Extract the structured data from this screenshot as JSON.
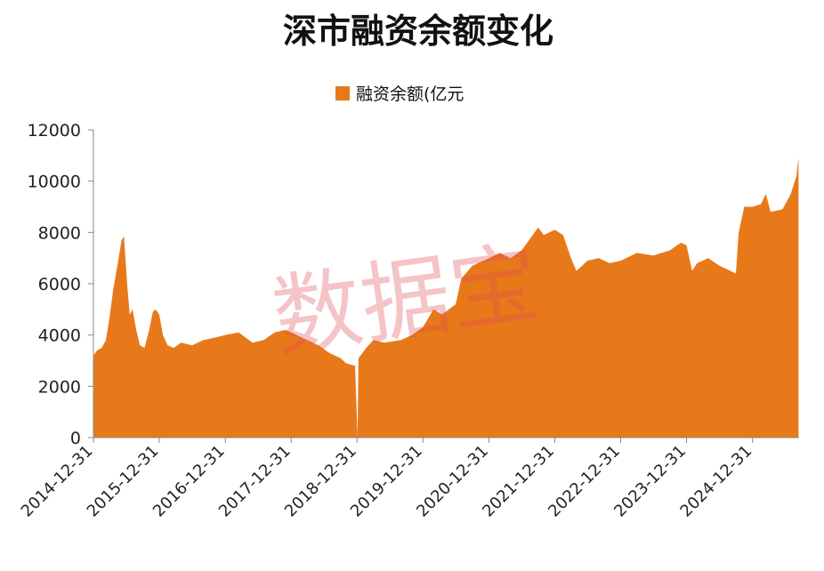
{
  "chart_data": {
    "type": "area",
    "title": "深市融资余额变化",
    "legend": {
      "label": "融资余额(亿元",
      "position": "top"
    },
    "colors": {
      "fill": "#E8791A",
      "axis": "#888888",
      "title": "#111111"
    },
    "watermark": "数据宝",
    "ylim": [
      0,
      12000
    ],
    "yticks": [
      "0",
      "2000",
      "4000",
      "6000",
      "8000",
      "10000",
      "12000"
    ],
    "xlim": [
      "2014-12-31",
      "2025-09-15"
    ],
    "xticks": [
      "2014-12-31",
      "2015-12-31",
      "2016-12-31",
      "2017-12-31",
      "2018-12-31",
      "2019-12-31",
      "2020-12-31",
      "2021-12-31",
      "2022-12-31",
      "2023-12-31",
      "2024-12-31"
    ],
    "grid": false,
    "series": [
      {
        "name": "融资余额(亿元",
        "points": [
          [
            "2014-12-31",
            3200
          ],
          [
            "2015-01-20",
            3400
          ],
          [
            "2015-02-15",
            3500
          ],
          [
            "2015-03-10",
            3800
          ],
          [
            "2015-03-31",
            4700
          ],
          [
            "2015-04-20",
            5800
          ],
          [
            "2015-05-15",
            6800
          ],
          [
            "2015-06-05",
            7700
          ],
          [
            "2015-06-18",
            7850
          ],
          [
            "2015-07-08",
            5800
          ],
          [
            "2015-07-20",
            4800
          ],
          [
            "2015-08-05",
            5000
          ],
          [
            "2015-08-25",
            4200
          ],
          [
            "2015-09-15",
            3600
          ],
          [
            "2015-10-10",
            3500
          ],
          [
            "2015-11-05",
            4200
          ],
          [
            "2015-11-25",
            4900
          ],
          [
            "2015-12-10",
            5000
          ],
          [
            "2015-12-31",
            4800
          ],
          [
            "2016-01-20",
            4000
          ],
          [
            "2016-02-15",
            3600
          ],
          [
            "2016-03-20",
            3500
          ],
          [
            "2016-04-30",
            3700
          ],
          [
            "2016-06-30",
            3600
          ],
          [
            "2016-08-31",
            3800
          ],
          [
            "2016-10-31",
            3900
          ],
          [
            "2016-12-31",
            4000
          ],
          [
            "2017-03-15",
            4100
          ],
          [
            "2017-05-31",
            3700
          ],
          [
            "2017-07-31",
            3800
          ],
          [
            "2017-09-30",
            4100
          ],
          [
            "2017-11-30",
            4200
          ],
          [
            "2017-12-31",
            4100
          ],
          [
            "2018-02-28",
            3900
          ],
          [
            "2018-05-31",
            3600
          ],
          [
            "2018-07-31",
            3300
          ],
          [
            "2018-09-30",
            3100
          ],
          [
            "2018-10-31",
            2900
          ],
          [
            "2018-12-20",
            2800
          ],
          [
            "2019-01-03",
            50
          ],
          [
            "2019-01-08",
            3100
          ],
          [
            "2019-02-20",
            3500
          ],
          [
            "2019-03-31",
            3800
          ],
          [
            "2019-05-31",
            3700
          ],
          [
            "2019-08-31",
            3800
          ],
          [
            "2019-10-31",
            4000
          ],
          [
            "2019-12-31",
            4300
          ],
          [
            "2020-02-28",
            5000
          ],
          [
            "2020-04-15",
            4800
          ],
          [
            "2020-06-30",
            5200
          ],
          [
            "2020-07-31",
            6200
          ],
          [
            "2020-09-30",
            6700
          ],
          [
            "2020-12-31",
            7000
          ],
          [
            "2021-02-28",
            7200
          ],
          [
            "2021-04-30",
            7000
          ],
          [
            "2021-06-30",
            7300
          ],
          [
            "2021-08-31",
            7900
          ],
          [
            "2021-09-30",
            8200
          ],
          [
            "2021-10-31",
            7900
          ],
          [
            "2021-12-31",
            8100
          ],
          [
            "2022-02-15",
            7900
          ],
          [
            "2022-03-31",
            7000
          ],
          [
            "2022-04-30",
            6500
          ],
          [
            "2022-06-30",
            6900
          ],
          [
            "2022-08-31",
            7000
          ],
          [
            "2022-10-31",
            6800
          ],
          [
            "2022-12-31",
            6900
          ],
          [
            "2023-03-31",
            7200
          ],
          [
            "2023-06-30",
            7100
          ],
          [
            "2023-09-30",
            7300
          ],
          [
            "2023-11-30",
            7600
          ],
          [
            "2023-12-31",
            7500
          ],
          [
            "2024-01-31",
            6500
          ],
          [
            "2024-02-28",
            6800
          ],
          [
            "2024-04-30",
            7000
          ],
          [
            "2024-06-30",
            6700
          ],
          [
            "2024-08-31",
            6500
          ],
          [
            "2024-09-30",
            6400
          ],
          [
            "2024-10-15",
            8000
          ],
          [
            "2024-11-15",
            9000
          ],
          [
            "2024-12-31",
            9000
          ],
          [
            "2025-02-15",
            9100
          ],
          [
            "2025-03-15",
            9500
          ],
          [
            "2025-04-10",
            8800
          ],
          [
            "2025-06-15",
            8900
          ],
          [
            "2025-07-31",
            9500
          ],
          [
            "2025-08-31",
            10200
          ],
          [
            "2025-09-12",
            10900
          ]
        ]
      }
    ]
  }
}
